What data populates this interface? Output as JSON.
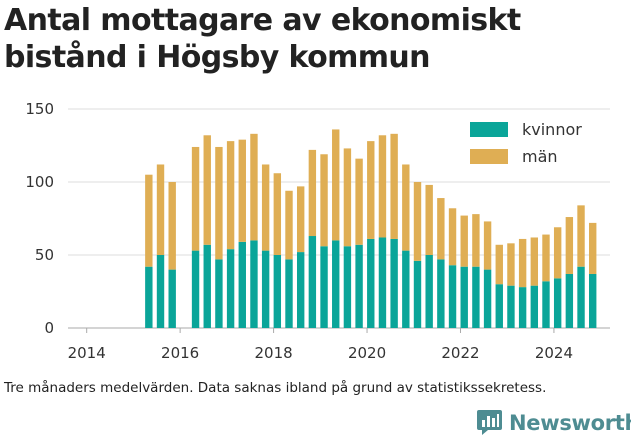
{
  "chart_data": {
    "type": "bar",
    "stacked": true,
    "title": "Antal mottagare av ekonomiskt bistånd i Högsby kommun",
    "xlabel": "",
    "ylabel": "",
    "ylim": [
      0,
      150
    ],
    "yticks": [
      0,
      50,
      100,
      150
    ],
    "xlim": [
      2013.6,
      2025.2
    ],
    "xticks": [
      2014,
      2016,
      2018,
      2020,
      2022,
      2024
    ],
    "grid": true,
    "legend_position": "top-right",
    "series": [
      {
        "name": "kvinnor",
        "color": "#0aa599",
        "x": [
          2015.33,
          2015.58,
          2015.83,
          2016.33,
          2016.58,
          2016.83,
          2017.08,
          2017.33,
          2017.58,
          2017.83,
          2018.08,
          2018.33,
          2018.58,
          2018.83,
          2019.08,
          2019.33,
          2019.58,
          2019.83,
          2020.08,
          2020.33,
          2020.58,
          2020.83,
          2021.08,
          2021.33,
          2021.58,
          2021.83,
          2022.08,
          2022.33,
          2022.58,
          2022.83,
          2023.08,
          2023.33,
          2023.58,
          2023.83,
          2024.08,
          2024.33,
          2024.58,
          2024.83
        ],
        "values": [
          42,
          50,
          40,
          53,
          57,
          47,
          54,
          59,
          60,
          53,
          50,
          47,
          52,
          63,
          56,
          60,
          56,
          57,
          61,
          62,
          61,
          53,
          46,
          50,
          47,
          43,
          42,
          42,
          40,
          30,
          29,
          28,
          29,
          32,
          34,
          37,
          42,
          37
        ]
      },
      {
        "name": "män",
        "color": "#dfae54",
        "x": [
          2015.33,
          2015.58,
          2015.83,
          2016.33,
          2016.58,
          2016.83,
          2017.08,
          2017.33,
          2017.58,
          2017.83,
          2018.08,
          2018.33,
          2018.58,
          2018.83,
          2019.08,
          2019.33,
          2019.58,
          2019.83,
          2020.08,
          2020.33,
          2020.58,
          2020.83,
          2021.08,
          2021.33,
          2021.58,
          2021.83,
          2022.08,
          2022.33,
          2022.58,
          2022.83,
          2023.08,
          2023.33,
          2023.58,
          2023.83,
          2024.08,
          2024.33,
          2024.58,
          2024.83
        ],
        "values": [
          63,
          62,
          60,
          71,
          75,
          77,
          74,
          70,
          73,
          59,
          56,
          47,
          45,
          59,
          63,
          76,
          67,
          59,
          67,
          70,
          72,
          59,
          54,
          48,
          42,
          39,
          35,
          36,
          33,
          27,
          29,
          33,
          33,
          32,
          35,
          39,
          42,
          35
        ]
      }
    ]
  },
  "footnote": "Tre månaders medelvärden. Data saknas ibland på grund av statistikssekretess.",
  "brand": {
    "name": "Newsworthy",
    "icon": "bar-chart-speech-bubble-icon",
    "color": "#4e8c92"
  }
}
